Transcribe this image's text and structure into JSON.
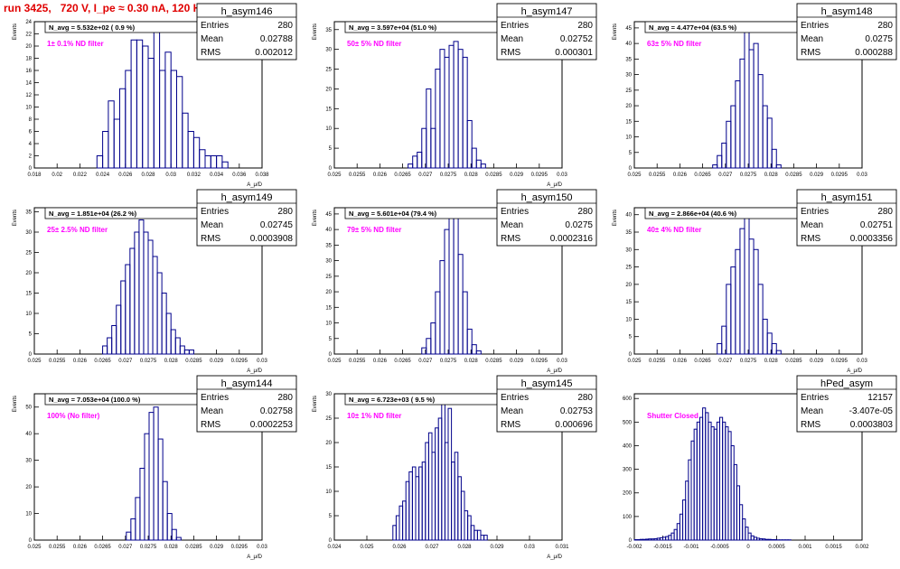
{
  "page_title": "run 3425,   720 V, I_pe ≈ 0.30 nA, 120 Hz",
  "chart_data": [
    {
      "type": "bar",
      "name": "h_asym146",
      "navg_label": "N_avg = 5.532e+02 ( 0.9 %)",
      "filter_label": "1± 0.1% ND filter",
      "stats": {
        "entries_label": "Entries",
        "entries": "280",
        "mean_label": "Mean",
        "mean": "0.02788",
        "rms_label": "RMS",
        "rms": "0.002012"
      },
      "ylabel": "Events",
      "xlabel": "A_μ/D",
      "xlim": [
        0.018,
        0.038
      ],
      "ylim": [
        0,
        24
      ],
      "xticks": [
        "0.018",
        "0.02",
        "0.022",
        "0.024",
        "0.026",
        "0.028",
        "0.03",
        "0.032",
        "0.034",
        "0.036",
        "0.038"
      ],
      "yticks": [
        "0",
        "2",
        "4",
        "6",
        "8",
        "10",
        "12",
        "14",
        "16",
        "18",
        "20",
        "22",
        "24"
      ],
      "bins": {
        "x0": 0.0235,
        "width": 0.0005,
        "values": [
          2,
          6,
          11,
          8,
          13,
          16,
          21,
          21,
          20,
          18,
          23,
          16,
          19,
          16,
          15,
          9,
          6,
          5,
          3,
          2,
          2,
          2,
          1
        ]
      }
    },
    {
      "type": "bar",
      "name": "h_asym147",
      "navg_label": "N_avg = 3.597e+04 (51.0 %)",
      "filter_label": "50± 5% ND filter",
      "stats": {
        "entries_label": "Entries",
        "entries": "280",
        "mean_label": "Mean",
        "mean": "0.02752",
        "rms_label": "RMS",
        "rms": "0.000301"
      },
      "ylabel": "Events",
      "xlabel": "A_μ/D",
      "xlim": [
        0.025,
        0.03
      ],
      "ylim": [
        0,
        37
      ],
      "xticks": [
        "0.025",
        "0.0255",
        "0.026",
        "0.0265",
        "0.027",
        "0.0275",
        "0.028",
        "0.0285",
        "0.029",
        "0.0295",
        "0.03"
      ],
      "yticks": [
        "0",
        "5",
        "10",
        "15",
        "20",
        "25",
        "30",
        "35"
      ],
      "bins": {
        "x0": 0.02662,
        "width": 0.0001,
        "values": [
          1,
          3,
          4,
          10,
          20,
          10,
          25,
          30,
          28,
          31,
          32,
          30,
          28,
          12,
          5,
          2,
          1
        ]
      }
    },
    {
      "type": "bar",
      "name": "h_asym148",
      "navg_label": "N_avg = 4.477e+04 (63.5 %)",
      "filter_label": "63± 5% ND filter",
      "stats": {
        "entries_label": "Entries",
        "entries": "280",
        "mean_label": "Mean",
        "mean": "0.0275",
        "rms_label": "RMS",
        "rms": "0.000288"
      },
      "ylabel": "Events",
      "xlabel": "",
      "xlim": [
        0.025,
        0.03
      ],
      "ylim": [
        0,
        47
      ],
      "xticks": [
        "0.025",
        "0.0255",
        "0.026",
        "0.0265",
        "0.027",
        "0.0275",
        "0.028",
        "0.0285",
        "0.029",
        "0.0295",
        "0.03"
      ],
      "yticks": [
        "0",
        "5",
        "10",
        "15",
        "20",
        "25",
        "30",
        "35",
        "40",
        "45"
      ],
      "bins": {
        "x0": 0.02672,
        "width": 0.0001,
        "values": [
          1,
          4,
          8,
          15,
          20,
          28,
          35,
          44,
          38,
          40,
          30,
          20,
          16,
          6,
          1,
          0
        ]
      }
    },
    {
      "type": "bar",
      "name": "h_asym149",
      "navg_label": "N_avg = 1.851e+04 (26.2 %)",
      "filter_label": "25± 2.5% ND filter",
      "stats": {
        "entries_label": "Entries",
        "entries": "280",
        "mean_label": "Mean",
        "mean": "0.02745",
        "rms_label": "RMS",
        "rms": "0.0003908"
      },
      "ylabel": "Events",
      "xlabel": "A_μ/D",
      "xlim": [
        0.025,
        0.03
      ],
      "ylim": [
        0,
        36
      ],
      "xticks": [
        "0.025",
        "0.0255",
        "0.026",
        "0.0265",
        "0.027",
        "0.0275",
        "0.028",
        "0.0285",
        "0.029",
        "0.0295",
        "0.03"
      ],
      "yticks": [
        "0",
        "5",
        "10",
        "15",
        "20",
        "25",
        "30",
        "35"
      ],
      "bins": {
        "x0": 0.0265,
        "width": 0.0001,
        "values": [
          2,
          4,
          7,
          12,
          18,
          22,
          26,
          30,
          33,
          30,
          28,
          24,
          20,
          15,
          10,
          6,
          4,
          2,
          1,
          1
        ]
      }
    },
    {
      "type": "bar",
      "name": "h_asym150",
      "navg_label": "N_avg = 5.601e+04 (79.4 %)",
      "filter_label": "79± 5% ND filter",
      "stats": {
        "entries_label": "Entries",
        "entries": "280",
        "mean_label": "Mean",
        "mean": "0.0275",
        "rms_label": "RMS",
        "rms": "0.0002316"
      },
      "ylabel": "Events",
      "xlabel": "A_μ/D",
      "xlim": [
        0.025,
        0.03
      ],
      "ylim": [
        0,
        47
      ],
      "xticks": [
        "0.025",
        "0.0255",
        "0.026",
        "0.0265",
        "0.027",
        "0.0275",
        "0.028",
        "0.0285",
        "0.029",
        "0.0295",
        "0.03"
      ],
      "yticks": [
        "0",
        "5",
        "10",
        "15",
        "20",
        "25",
        "30",
        "35",
        "40",
        "45"
      ],
      "bins": {
        "x0": 0.02692,
        "width": 0.0001,
        "values": [
          2,
          5,
          10,
          20,
          30,
          40,
          45,
          44,
          32,
          20,
          8,
          3,
          1
        ]
      }
    },
    {
      "type": "bar",
      "name": "h_asym151",
      "navg_label": "N_avg = 2.866e+04 (40.6 %)",
      "filter_label": "40± 4% ND filter",
      "stats": {
        "entries_label": "Entries",
        "entries": "280",
        "mean_label": "Mean",
        "mean": "0.02751",
        "rms_label": "RMS",
        "rms": "0.0003356"
      },
      "ylabel": "Events",
      "xlabel": "A_μ/D",
      "xlim": [
        0.025,
        0.03
      ],
      "ylim": [
        0,
        42
      ],
      "xticks": [
        "0.025",
        "0.0255",
        "0.026",
        "0.0265",
        "0.027",
        "0.0275",
        "0.028",
        "0.0285",
        "0.029",
        "0.0295",
        "0.03"
      ],
      "yticks": [
        "0",
        "5",
        "10",
        "15",
        "20",
        "25",
        "30",
        "35",
        "40"
      ],
      "bins": {
        "x0": 0.02682,
        "width": 0.0001,
        "values": [
          3,
          8,
          20,
          25,
          30,
          36,
          40,
          33,
          30,
          20,
          10,
          6,
          3,
          1
        ]
      }
    },
    {
      "type": "bar",
      "name": "h_asym144",
      "navg_label": "N_avg = 7.053e+04 (100.0 %)",
      "filter_label": "100% (No filter)",
      "stats": {
        "entries_label": "Entries",
        "entries": "280",
        "mean_label": "Mean",
        "mean": "0.02758",
        "rms_label": "RMS",
        "rms": "0.0002253"
      },
      "ylabel": "Events",
      "xlabel": "A_μ/D",
      "xlim": [
        0.025,
        0.03
      ],
      "ylim": [
        0,
        55
      ],
      "xticks": [
        "0.025",
        "0.0255",
        "0.026",
        "0.0265",
        "0.027",
        "0.0275",
        "0.028",
        "0.0285",
        "0.029",
        "0.0295",
        "0.03"
      ],
      "yticks": [
        "0",
        "10",
        "20",
        "30",
        "40",
        "50"
      ],
      "bins": {
        "x0": 0.02702,
        "width": 0.0001,
        "values": [
          3,
          8,
          16,
          27,
          40,
          48,
          50,
          38,
          22,
          10,
          4,
          1
        ]
      }
    },
    {
      "type": "bar",
      "name": "h_asym145",
      "navg_label": "N_avg = 6.723e+03 ( 9.5 %)",
      "filter_label": "10± 1% ND filter",
      "stats": {
        "entries_label": "Entries",
        "entries": "280",
        "mean_label": "Mean",
        "mean": "0.02753",
        "rms_label": "RMS",
        "rms": "0.000696"
      },
      "ylabel": "Events",
      "xlabel": "A_μ/D",
      "xlim": [
        0.024,
        0.031
      ],
      "ylim": [
        0,
        30
      ],
      "xticks": [
        "0.024",
        "0.025",
        "0.026",
        "0.027",
        "0.028",
        "0.029",
        "0.03",
        "0.031"
      ],
      "yticks": [
        "0",
        "5",
        "10",
        "15",
        "20",
        "25",
        "30"
      ],
      "bins": {
        "x0": 0.0258,
        "width": 0.0001,
        "values": [
          3,
          5,
          7,
          8,
          12,
          14,
          15,
          13,
          15,
          16,
          20,
          22,
          18,
          23,
          25,
          28,
          20,
          27,
          16,
          18,
          13,
          10,
          6,
          5,
          3,
          2,
          2,
          1,
          1
        ]
      }
    },
    {
      "type": "bar",
      "name": "hPed_asym",
      "navg_label": "",
      "filter_label": "Shutter Closed",
      "stats": {
        "entries_label": "Entries",
        "entries": "12157",
        "mean_label": "Mean",
        "mean": "-3.407e-05",
        "rms_label": "RMS",
        "rms": "0.0003803"
      },
      "ylabel": "",
      "xlabel": "",
      "xlim": [
        -0.002,
        0.002
      ],
      "ylim": [
        0,
        620
      ],
      "xticks": [
        "-0.002",
        "-0.0015",
        "-0.001",
        "-0.0005",
        "0",
        "0.0005",
        "0.001",
        "0.0015",
        "0.002"
      ],
      "yticks": [
        "0",
        "100",
        "200",
        "300",
        "400",
        "500",
        "600"
      ],
      "bins": {
        "x0": -0.002,
        "width": 5e-05,
        "values": [
          2,
          2,
          3,
          3,
          4,
          5,
          5,
          6,
          8,
          10,
          12,
          15,
          20,
          30,
          45,
          70,
          110,
          170,
          250,
          340,
          420,
          470,
          500,
          520,
          560,
          540,
          500,
          480,
          470,
          500,
          520,
          500,
          480,
          460,
          400,
          320,
          230,
          150,
          90,
          55,
          30,
          18,
          12,
          8,
          6,
          5,
          3,
          3,
          2,
          2,
          1,
          1,
          1,
          1,
          1,
          0,
          0,
          0,
          0,
          0,
          0,
          0,
          0,
          0,
          0,
          0,
          0,
          0,
          0,
          0,
          0,
          0,
          0,
          0,
          0,
          0,
          0,
          0,
          0,
          0
        ]
      }
    }
  ]
}
